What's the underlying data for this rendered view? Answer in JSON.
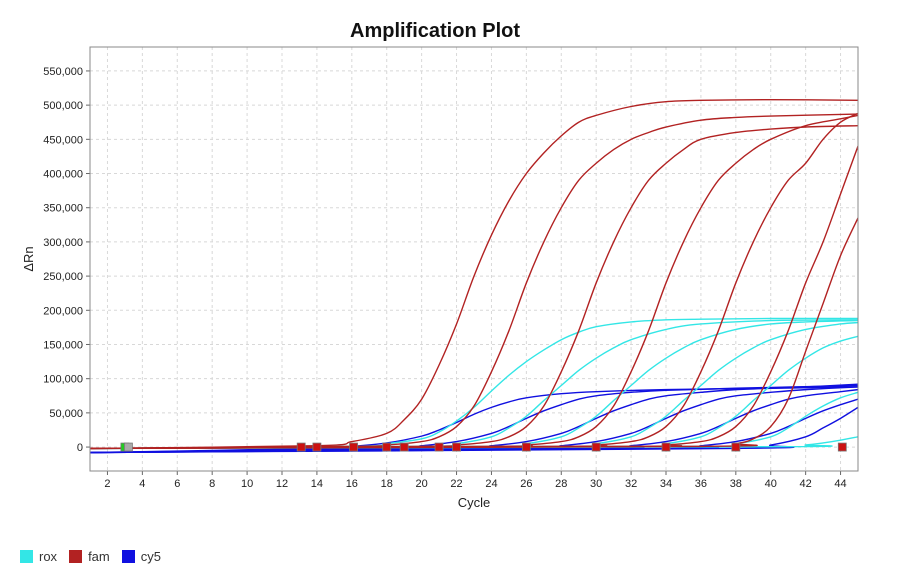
{
  "chart_data": {
    "type": "line",
    "title": "Amplification Plot",
    "xlabel": "Cycle",
    "ylabel": "ΔRn",
    "xlim": [
      1,
      45
    ],
    "ylim": [
      -35000,
      585000
    ],
    "x_ticks": [
      2,
      4,
      6,
      8,
      10,
      12,
      14,
      16,
      18,
      20,
      22,
      24,
      26,
      28,
      30,
      32,
      34,
      36,
      38,
      40,
      42,
      44
    ],
    "y_ticks": [
      0,
      50000,
      100000,
      150000,
      200000,
      250000,
      300000,
      350000,
      400000,
      450000,
      500000,
      550000
    ],
    "y_tick_labels": [
      "0",
      "50,000",
      "100,000",
      "150,000",
      "200,000",
      "250,000",
      "300,000",
      "350,000",
      "400,000",
      "450,000",
      "500,000",
      "550,000"
    ],
    "grid": true,
    "legend_position": "bottom-left",
    "series": [
      {
        "name": "fam",
        "color": "#b22222",
        "curves": [
          {
            "x": [
              1,
              14,
              16,
              18,
              19,
              20,
              21,
              22,
              23,
              24,
              25,
              26,
              27,
              28,
              29,
              30,
              32,
              34,
              36,
              40,
              45
            ],
            "y": [
              -2000,
              2000,
              8000,
              20000,
              40000,
              70000,
              120000,
              180000,
              250000,
              310000,
              360000,
              400000,
              430000,
              455000,
              475000,
              485000,
              498000,
              505000,
              507000,
              508000,
              507000
            ]
          },
          {
            "x": [
              1,
              16,
              18,
              20,
              21,
              22,
              23,
              24,
              25,
              26,
              27,
              28,
              29,
              30,
              31,
              32,
              33,
              34,
              36,
              38,
              40,
              45
            ],
            "y": [
              -2000,
              1000,
              3000,
              8000,
              15000,
              30000,
              60000,
              110000,
              170000,
              240000,
              300000,
              350000,
              390000,
              415000,
              435000,
              450000,
              460000,
              468000,
              478000,
              482000,
              484000,
              487000
            ]
          },
          {
            "x": [
              1,
              20,
              22,
              24,
              25,
              26,
              27,
              28,
              29,
              30,
              31,
              32,
              33,
              34,
              35,
              36,
              38,
              40,
              42,
              45
            ],
            "y": [
              -2000,
              1000,
              3000,
              8000,
              15000,
              30000,
              60000,
              110000,
              170000,
              240000,
              300000,
              350000,
              390000,
              415000,
              435000,
              450000,
              460000,
              465000,
              468000,
              470000
            ]
          },
          {
            "x": [
              1,
              24,
              26,
              28,
              29,
              30,
              31,
              32,
              33,
              34,
              35,
              36,
              37,
              38,
              39,
              40,
              42,
              44,
              45
            ],
            "y": [
              -2000,
              1000,
              3000,
              8000,
              15000,
              30000,
              60000,
              110000,
              170000,
              240000,
              300000,
              350000,
              390000,
              415000,
              435000,
              450000,
              470000,
              480000,
              485000
            ]
          },
          {
            "x": [
              1,
              28,
              30,
              32,
              33,
              34,
              35,
              36,
              37,
              38,
              39,
              40,
              41,
              42,
              43,
              44,
              45
            ],
            "y": [
              -2000,
              1000,
              3000,
              8000,
              15000,
              30000,
              60000,
              110000,
              170000,
              240000,
              300000,
              350000,
              390000,
              415000,
              450000,
              475000,
              488000
            ]
          },
          {
            "x": [
              1,
              32,
              34,
              36,
              37,
              38,
              39,
              40,
              41,
              42,
              43,
              44,
              45
            ],
            "y": [
              -2000,
              1000,
              3000,
              8000,
              15000,
              30000,
              60000,
              110000,
              170000,
              240000,
              300000,
              370000,
              440000
            ]
          },
          {
            "x": [
              1,
              36,
              38,
              39,
              40,
              41,
              42,
              43,
              44,
              45
            ],
            "y": [
              -2000,
              1000,
              5000,
              12000,
              30000,
              70000,
              140000,
              210000,
              280000,
              335000
            ]
          }
        ]
      },
      {
        "name": "rox",
        "color": "#33e6e6",
        "curves": [
          {
            "x": [
              1,
              16,
              18,
              20,
              21,
              22,
              23,
              24,
              25,
              26,
              27,
              28,
              29,
              30,
              32,
              34,
              36,
              40,
              45
            ],
            "y": [
              -2000,
              1000,
              5000,
              12000,
              22000,
              38000,
              58000,
              82000,
              105000,
              125000,
              142000,
              157000,
              168000,
              176000,
              183000,
              186000,
              187000,
              188000,
              188000
            ]
          },
          {
            "x": [
              1,
              20,
              22,
              24,
              25,
              26,
              27,
              28,
              29,
              30,
              31,
              32,
              34,
              36,
              40,
              45
            ],
            "y": [
              -2000,
              1000,
              5000,
              15000,
              28000,
              45000,
              68000,
              90000,
              112000,
              130000,
              145000,
              157000,
              172000,
              180000,
              185000,
              186000
            ]
          },
          {
            "x": [
              1,
              24,
              26,
              28,
              29,
              30,
              31,
              32,
              33,
              34,
              35,
              36,
              38,
              40,
              42,
              45
            ],
            "y": [
              -2000,
              1000,
              5000,
              15000,
              28000,
              45000,
              68000,
              90000,
              112000,
              130000,
              145000,
              157000,
              172000,
              180000,
              183000,
              185000
            ]
          },
          {
            "x": [
              1,
              28,
              30,
              32,
              33,
              34,
              35,
              36,
              37,
              38,
              39,
              40,
              42,
              44,
              45
            ],
            "y": [
              -2000,
              1000,
              5000,
              15000,
              28000,
              45000,
              68000,
              90000,
              112000,
              130000,
              145000,
              157000,
              172000,
              180000,
              182000
            ]
          },
          {
            "x": [
              1,
              32,
              34,
              36,
              37,
              38,
              39,
              40,
              41,
              42,
              43,
              44,
              45
            ],
            "y": [
              -2000,
              1000,
              5000,
              15000,
              28000,
              45000,
              68000,
              90000,
              112000,
              130000,
              145000,
              155000,
              162000
            ]
          },
          {
            "x": [
              1,
              36,
              38,
              40,
              41,
              42,
              43,
              44,
              45
            ],
            "y": [
              -2000,
              1000,
              5000,
              15000,
              28000,
              45000,
              60000,
              72000,
              80000
            ]
          },
          {
            "x": [
              1,
              40,
              42,
              43,
              44,
              45
            ],
            "y": [
              -2000,
              500,
              3000,
              6000,
              10000,
              15000
            ]
          }
        ]
      },
      {
        "name": "cy5",
        "color": "#1010e0",
        "curves": [
          {
            "x": [
              1,
              14,
              16,
              18,
              20,
              21,
              22,
              23,
              24,
              25,
              26,
              28,
              30,
              34,
              40,
              45
            ],
            "y": [
              -8000,
              -2000,
              1000,
              6000,
              16000,
              25000,
              36000,
              48000,
              58000,
              66000,
              72000,
              78000,
              81000,
              84000,
              86000,
              88000
            ]
          },
          {
            "x": [
              1,
              18,
              20,
              22,
              24,
              25,
              26,
              27,
              28,
              29,
              30,
              32,
              34,
              38,
              45
            ],
            "y": [
              -8000,
              -2000,
              2000,
              8000,
              20000,
              30000,
              42000,
              53000,
              62000,
              70000,
              75000,
              80000,
              83000,
              86000,
              90000
            ]
          },
          {
            "x": [
              1,
              22,
              24,
              26,
              28,
              29,
              30,
              31,
              32,
              33,
              34,
              36,
              38,
              42,
              45
            ],
            "y": [
              -8000,
              -2000,
              2000,
              8000,
              20000,
              30000,
              42000,
              53000,
              62000,
              70000,
              75000,
              80000,
              84000,
              88000,
              92000
            ]
          },
          {
            "x": [
              1,
              26,
              28,
              30,
              32,
              33,
              34,
              35,
              36,
              37,
              38,
              40,
              42,
              45
            ],
            "y": [
              -8000,
              -2000,
              2000,
              8000,
              20000,
              30000,
              42000,
              53000,
              62000,
              70000,
              75000,
              80000,
              84000,
              88000
            ]
          },
          {
            "x": [
              1,
              30,
              32,
              34,
              36,
              37,
              38,
              39,
              40,
              41,
              42,
              44,
              45
            ],
            "y": [
              -8000,
              -2000,
              2000,
              8000,
              20000,
              30000,
              42000,
              53000,
              62000,
              70000,
              75000,
              81000,
              84000
            ]
          },
          {
            "x": [
              1,
              34,
              36,
              38,
              40,
              41,
              42,
              43,
              44,
              45
            ],
            "y": [
              -8000,
              -2000,
              2000,
              8000,
              20000,
              30000,
              42000,
              53000,
              62000,
              70000
            ]
          },
          {
            "x": [
              1,
              38,
              40,
              42,
              43,
              44,
              45
            ],
            "y": [
              -8000,
              -2000,
              3000,
              15000,
              28000,
              42000,
              58000
            ]
          }
        ]
      }
    ],
    "threshold_markers": [
      {
        "x": 3,
        "color": "#22cc22"
      },
      {
        "x": 3.2,
        "color": "#aaaaaa"
      },
      {
        "x": 13.1,
        "color": "#cc1111"
      },
      {
        "x": 14,
        "color": "#cc1111"
      },
      {
        "x": 16.1,
        "color": "#cc1111"
      },
      {
        "x": 18,
        "color": "#cc1111"
      },
      {
        "x": 19,
        "color": "#cc1111"
      },
      {
        "x": 21,
        "color": "#cc1111"
      },
      {
        "x": 22,
        "color": "#cc1111"
      },
      {
        "x": 26,
        "color": "#cc1111"
      },
      {
        "x": 30,
        "color": "#cc1111"
      },
      {
        "x": 34,
        "color": "#cc1111"
      },
      {
        "x": 38,
        "color": "#cc1111"
      },
      {
        "x": 44.1,
        "color": "#cc1111"
      }
    ]
  },
  "legend": {
    "items": [
      {
        "label": "rox",
        "color": "#33e6e6"
      },
      {
        "label": "fam",
        "color": "#b22222"
      },
      {
        "label": "cy5",
        "color": "#1010e0"
      }
    ]
  }
}
